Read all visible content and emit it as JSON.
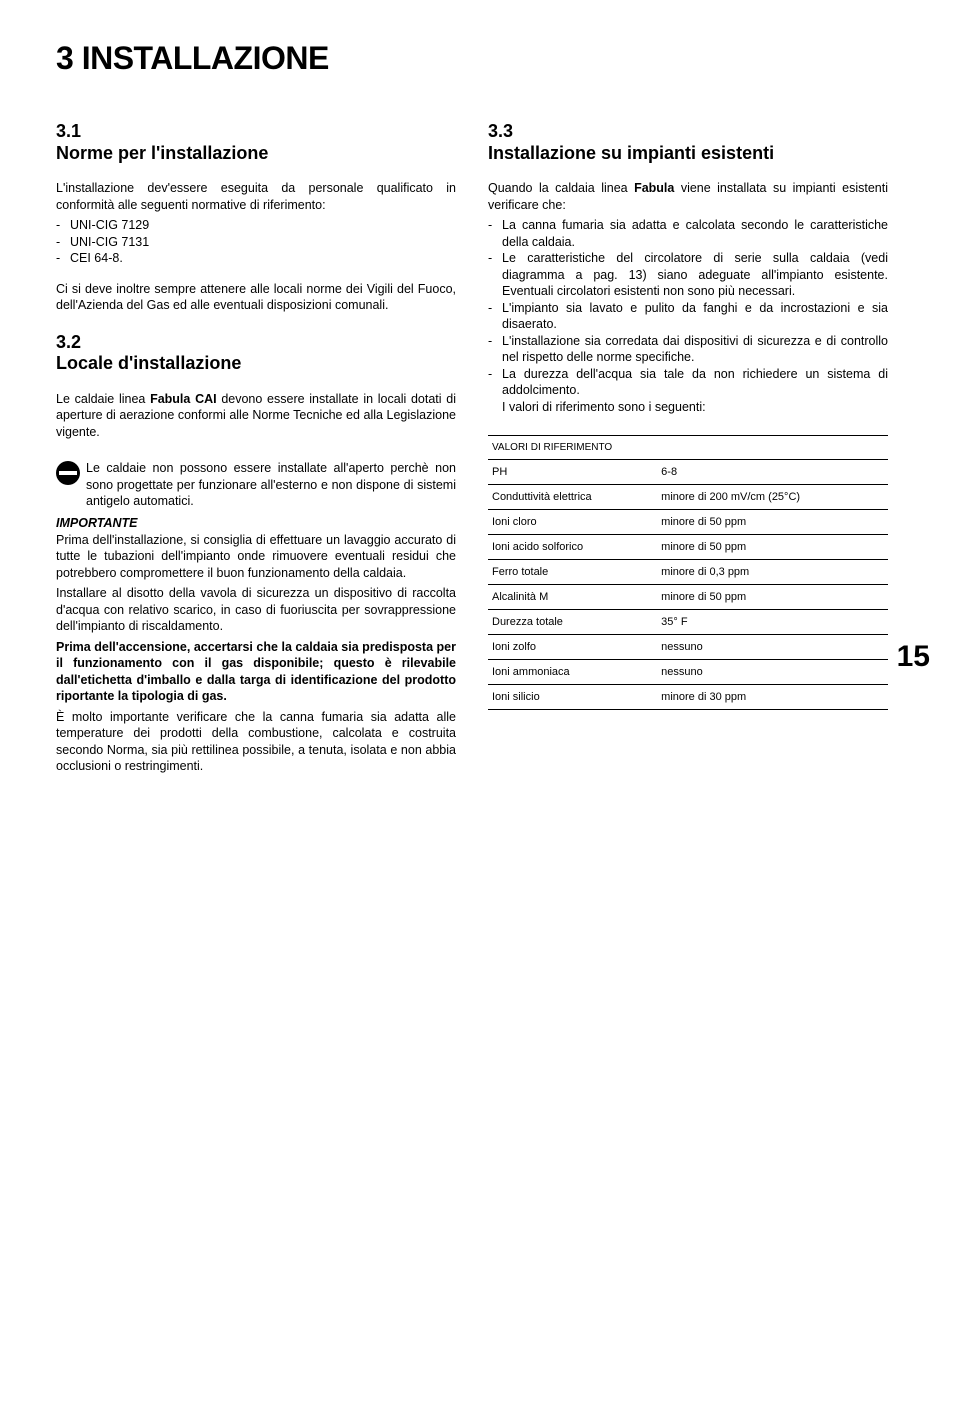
{
  "chapter_title": "3 INSTALLAZIONE",
  "page_number": "15",
  "left": {
    "s1_num": "3.1",
    "s1_title": "Norme per l'installazione",
    "s1_intro": "L'installazione dev'essere eseguita da personale qualificato in conformità alle seguenti normative di riferimento:",
    "s1_li1": "UNI-CIG 7129",
    "s1_li2": "UNI-CIG 7131",
    "s1_li3": "CEI 64-8.",
    "s1_p2": "Ci si deve inoltre sempre attenere alle locali norme dei Vigili del Fuoco, dell'Azienda del Gas ed alle eventuali disposizioni comunali.",
    "s2_num": "3.2",
    "s2_title": "Locale d'installazione",
    "s2_p_a": "Le caldaie linea ",
    "s2_p_bold": "Fabula CAI",
    "s2_p_b": " devono essere installate in locali dotati di aperture di aerazione conformi alle Norme Tecniche ed alla Legislazione vigente.",
    "icon_text": "Le caldaie non possono essere installate all'aperto perchè non sono progettate per funzionare all'esterno e non dispone di sistemi antigelo automatici.",
    "important": "IMPORTANTE",
    "imp_p1": "Prima dell'installazione, si consiglia di effettuare un lavaggio accurato di tutte le tubazioni dell'impianto onde rimuovere eventuali residui che potrebbero compromettere il buon funzionamento della caldaia.",
    "imp_p2": "Installare al disotto della vavola di sicurezza un dispositivo di raccolta d'acqua con relativo scarico, in caso di fuoriuscita per sovrappressione dell'impianto di riscaldamento.",
    "imp_bold": "Prima dell'accensione, accertarsi che la caldaia sia predisposta per il funzionamento con il gas disponibile; questo è rilevabile dall'etichetta d'imballo e dalla targa di identificazione del prodotto riportante la tipologia di gas.",
    "imp_p3": "È molto importante verificare che la canna fumaria sia adatta alle temperature dei prodotti della combustione, calcolata e costruita secondo Norma, sia più rettilinea possibile, a tenuta, isolata e non abbia occlusioni o restringimenti."
  },
  "right": {
    "s3_num": "3.3",
    "s3_title": "Installazione su impianti esistenti",
    "s3_p_a": "Quando la caldaia linea ",
    "s3_p_bold": "Fabula",
    "s3_p_b": " viene installata su impianti esistenti verificare che:",
    "li1": "La canna fumaria sia adatta e calcolata secondo le caratteristiche della caldaia.",
    "li2": "Le caratteristiche del circolatore di serie sulla caldaia (vedi diagramma a pag. 13) siano adeguate all'impianto esistente. Eventuali circolatori esistenti non sono più necessari.",
    "li3": "L'impianto sia lavato e pulito da fanghi e da incrostazioni e sia disaerato.",
    "li4": "L'installazione sia corredata dai dispositivi di sicurezza e di controllo nel rispetto delle norme specifiche.",
    "li5_a": "La durezza dell'acqua sia tale da non richiedere un sistema di addolcimento.",
    "li5_b": "I valori di riferimento sono i seguenti:",
    "table_header": "VALORI DI RIFERIMENTO",
    "rows": [
      {
        "k": "PH",
        "v": "6-8"
      },
      {
        "k": "Conduttività elettrica",
        "v": "minore di 200 mV/cm (25°C)"
      },
      {
        "k": "Ioni cloro",
        "v": "minore di 50 ppm"
      },
      {
        "k": "Ioni acido solforico",
        "v": "minore di 50 ppm"
      },
      {
        "k": "Ferro totale",
        "v": "minore di 0,3 ppm"
      },
      {
        "k": "Alcalinità M",
        "v": "minore di 50 ppm"
      },
      {
        "k": "Durezza totale",
        "v": "35° F"
      },
      {
        "k": "Ioni zolfo",
        "v": "nessuno"
      },
      {
        "k": "Ioni ammoniaca",
        "v": "nessuno"
      },
      {
        "k": "Ioni silicio",
        "v": "minore di 30 ppm"
      }
    ]
  }
}
